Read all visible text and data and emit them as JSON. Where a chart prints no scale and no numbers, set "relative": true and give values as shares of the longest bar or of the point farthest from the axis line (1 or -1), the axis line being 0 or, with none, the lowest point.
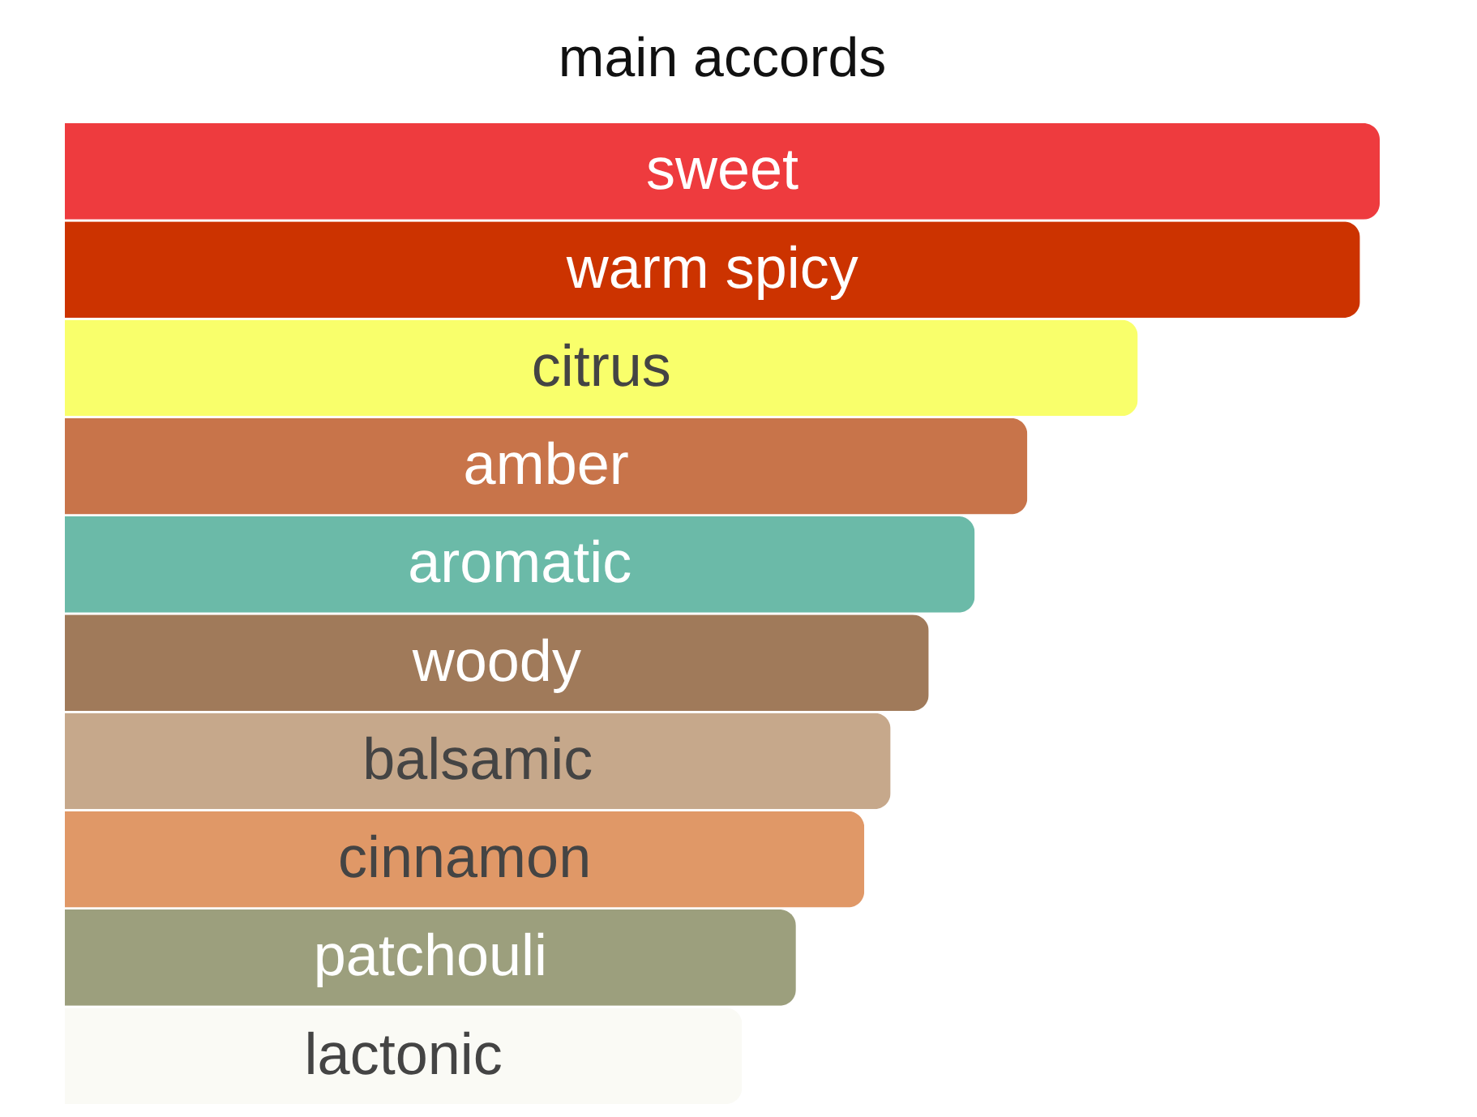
{
  "chart_data": {
    "type": "bar",
    "orientation": "horizontal",
    "relative": true,
    "title": "main accords",
    "categories": [
      "sweet",
      "warm spicy",
      "citrus",
      "amber",
      "aromatic",
      "woody",
      "balsamic",
      "cinnamon",
      "patchouli",
      "lactonic"
    ],
    "values": [
      1,
      0.985,
      0.816,
      0.732,
      0.692,
      0.657,
      0.628,
      0.608,
      0.556,
      0.515
    ],
    "colors": [
      "#ee3b3e",
      "#cc3300",
      "#f9ff6b",
      "#c8744a",
      "#6bbaa8",
      "#a07a5a",
      "#c6a88b",
      "#e09867",
      "#9c9f7d",
      "#fafaf5"
    ],
    "data_labels": false
  }
}
